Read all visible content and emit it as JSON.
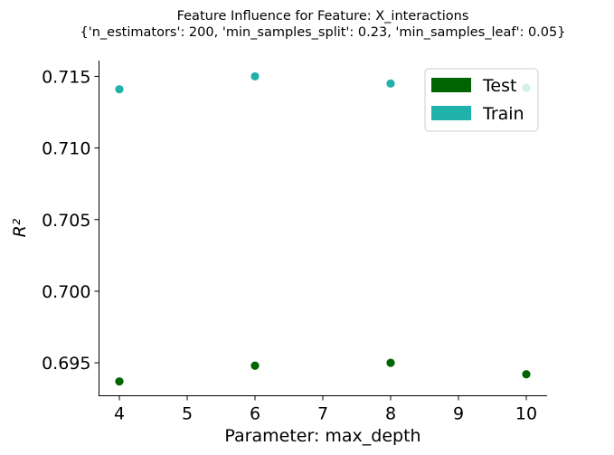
{
  "chart_data": {
    "type": "scatter",
    "title": "Feature Influence for Feature: X_interactions",
    "subtitle": "{'n_estimators': 200, 'min_samples_split': 0.23, 'min_samples_leaf': 0.05}",
    "xlabel": "Parameter: max_depth",
    "ylabel": "R²",
    "xlim": [
      3.7,
      10.3
    ],
    "ylim": [
      0.6927,
      0.7161
    ],
    "xticks": [
      4,
      5,
      6,
      7,
      8,
      9,
      10
    ],
    "yticks": [
      0.695,
      0.7,
      0.705,
      0.71,
      0.715
    ],
    "ytick_labels": [
      "0.695",
      "0.700",
      "0.705",
      "0.710",
      "0.715"
    ],
    "grid": false,
    "legend": "top-right",
    "series": [
      {
        "name": "Test",
        "color": "#006400",
        "x": [
          4,
          6,
          8,
          10
        ],
        "y": [
          0.6937,
          0.6948,
          0.695,
          0.6942
        ]
      },
      {
        "name": "Train",
        "color": "#20b2aa",
        "x": [
          4,
          6,
          8,
          10
        ],
        "y": [
          0.7141,
          0.715,
          0.7145,
          0.7142
        ]
      }
    ]
  }
}
